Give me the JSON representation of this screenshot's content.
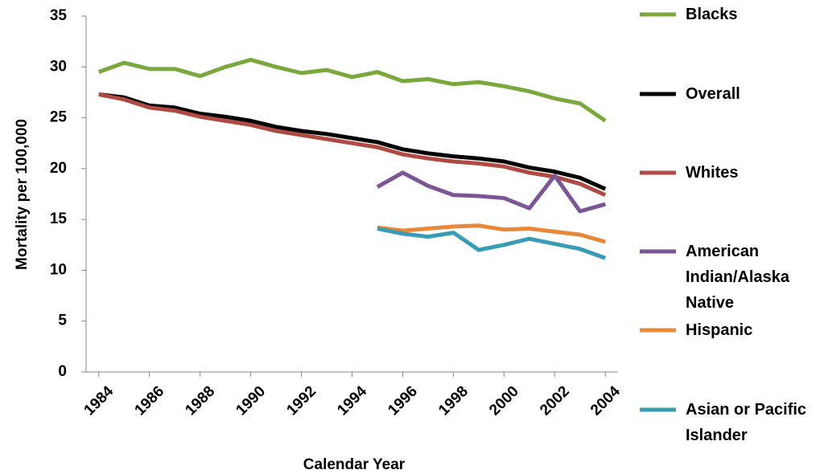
{
  "chart_data": {
    "type": "line",
    "x_label": "Calendar Year",
    "y_label": "Mortality per 100,000",
    "x": [
      1984,
      1985,
      1986,
      1987,
      1988,
      1989,
      1990,
      1991,
      1992,
      1993,
      1994,
      1995,
      1996,
      1997,
      1998,
      1999,
      2000,
      2001,
      2002,
      2003,
      2004
    ],
    "xlim": [
      1983.5,
      2004.5
    ],
    "xticks": [
      1984,
      1986,
      1988,
      1990,
      1992,
      1994,
      1996,
      1998,
      2000,
      2002,
      2004
    ],
    "ylim": [
      0,
      35
    ],
    "yticks": [
      0,
      5,
      10,
      15,
      20,
      25,
      30,
      35
    ],
    "grid": false,
    "legend": "right",
    "series": [
      {
        "name": "Blacks",
        "color": "#7aa83d",
        "values": [
          29.5,
          30.4,
          29.8,
          29.8,
          29.1,
          30.0,
          30.7,
          30.0,
          29.4,
          29.7,
          29.0,
          29.5,
          28.6,
          28.8,
          28.3,
          28.5,
          28.1,
          27.6,
          26.9,
          26.4,
          24.7
        ]
      },
      {
        "name": "Overall",
        "color": "#000000",
        "values": [
          27.3,
          27.0,
          26.2,
          26.0,
          25.4,
          25.1,
          24.7,
          24.1,
          23.7,
          23.4,
          23.0,
          22.6,
          21.9,
          21.5,
          21.2,
          21.0,
          20.7,
          20.1,
          19.7,
          19.1,
          18.0
        ]
      },
      {
        "name": "Whites",
        "color": "#b04a43",
        "values": [
          27.3,
          26.8,
          26.0,
          25.7,
          25.1,
          24.7,
          24.3,
          23.7,
          23.3,
          22.9,
          22.5,
          22.1,
          21.4,
          21.0,
          20.7,
          20.5,
          20.2,
          19.6,
          19.2,
          18.5,
          17.4
        ]
      },
      {
        "name": "American Indian/Alaska Native",
        "color": "#7b5596",
        "values": [
          null,
          null,
          null,
          null,
          null,
          null,
          null,
          null,
          null,
          null,
          null,
          18.2,
          19.6,
          18.3,
          17.4,
          17.3,
          17.1,
          16.1,
          19.3,
          15.8,
          16.5
        ]
      },
      {
        "name": "Hispanic",
        "color": "#e8893a",
        "values": [
          null,
          null,
          null,
          null,
          null,
          null,
          null,
          null,
          null,
          null,
          null,
          14.2,
          13.9,
          14.1,
          14.3,
          14.4,
          14.0,
          14.1,
          13.8,
          13.5,
          12.8
        ]
      },
      {
        "name": "Asian or Pacific Islander",
        "color": "#3a9bb5",
        "values": [
          null,
          null,
          null,
          null,
          null,
          null,
          null,
          null,
          null,
          null,
          null,
          14.1,
          13.6,
          13.3,
          13.7,
          12.0,
          12.5,
          13.1,
          12.6,
          12.1,
          11.2
        ]
      }
    ]
  }
}
